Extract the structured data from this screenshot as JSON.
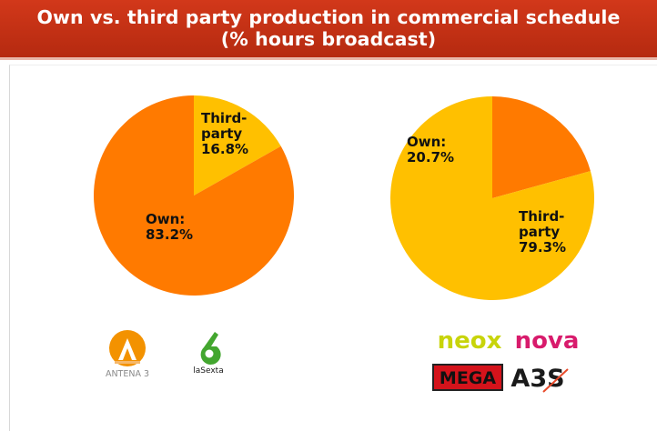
{
  "title": {
    "line1": "Own vs. third party production in commercial schedule",
    "line2": "(% hours broadcast)"
  },
  "colors": {
    "title_background": "#c7321a",
    "own": "#ff7a00",
    "third_party": "#ffc000"
  },
  "chart_data": [
    {
      "type": "pie",
      "slices": [
        {
          "label": "Third-party",
          "value": 16.8,
          "value_text": "16.8%",
          "label_lines": [
            "Third-",
            "party"
          ],
          "color": "#ffc000"
        },
        {
          "label": "Own",
          "value": 83.2,
          "value_text": "83.2%",
          "label_lines": [
            "Own:"
          ],
          "color": "#ff7a00"
        }
      ]
    },
    {
      "type": "pie",
      "slices": [
        {
          "label": "Own",
          "value": 20.7,
          "value_text": "20.7%",
          "label_lines": [
            "Own:"
          ],
          "color": "#ff7a00"
        },
        {
          "label": "Third-party",
          "value": 79.3,
          "value_text": "79.3%",
          "label_lines": [
            "Third-",
            "party"
          ],
          "color": "#ffc000"
        }
      ]
    }
  ],
  "logos": {
    "left": [
      {
        "name": "antena3",
        "text": "ANTENA 3",
        "icon": "antena3-a-icon"
      },
      {
        "name": "lasexta",
        "text": "laSexta",
        "icon": "lasexta-6-icon"
      }
    ],
    "right": [
      {
        "name": "neox",
        "text": "neox",
        "color": "#c8d40a"
      },
      {
        "name": "nova",
        "text": "nova",
        "color": "#d81b6c"
      },
      {
        "name": "mega",
        "text": "MEGA",
        "color": "#d4131b"
      },
      {
        "name": "a3s",
        "text": "A3S",
        "color": "#1a1a1a"
      }
    ]
  }
}
